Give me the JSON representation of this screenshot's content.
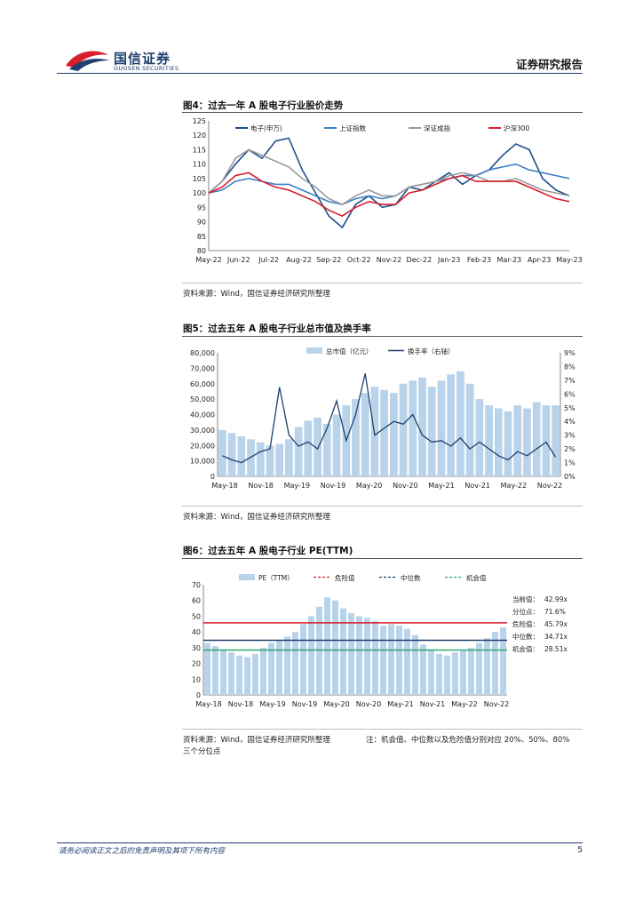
{
  "header": {
    "logo_cn": "国信证券",
    "logo_en": "GUOSEN SECURITIES",
    "report_type": "证券研究报告"
  },
  "figures": [
    {
      "title": "图4：过去一年 A 股电子行业股价走势",
      "source": "资料来源：Wind，国信证券经济研究所整理"
    },
    {
      "title": "图5：过去五年 A 股电子行业总市值及换手率",
      "source": "资料来源：Wind，国信证券经济研究所整理"
    },
    {
      "title": "图6：过去五年 A 股电子行业 PE(TTM)",
      "source": "资料来源：Wind，国信证券经济研究所整理",
      "note": "注：机会值、中位数以及危险值分别对应 20%、50%、80%",
      "note_line2": "三个分位点"
    }
  ],
  "footer": {
    "disclaimer": "请务必阅读正文之后的免责声明及其项下所有内容",
    "page": "5"
  },
  "chart_data": [
    {
      "type": "line",
      "title": "",
      "xlabel": "",
      "ylabel": "",
      "ylim": [
        80,
        125
      ],
      "yticks": [
        "125",
        "120",
        "115",
        "110",
        "105",
        "100",
        "95",
        "90",
        "85",
        "80"
      ],
      "x_ticks": [
        "May-22",
        "Jun-22",
        "Jul-22",
        "Aug-22",
        "Sep-22",
        "Oct-22",
        "Nov-22",
        "Dec-22",
        "Jan-23",
        "Feb-23",
        "Mar-23",
        "Apr-23",
        "May-23"
      ],
      "legend_position": "top",
      "series": [
        {
          "name": "电子(申万)",
          "color": "#1f4e8c",
          "values": [
            100,
            104,
            110,
            115,
            112,
            118,
            119,
            108,
            100,
            92,
            88,
            96,
            99,
            95,
            96,
            102,
            101,
            104,
            107,
            103,
            106,
            108,
            113,
            117,
            115,
            105,
            101,
            99
          ]
        },
        {
          "name": "上证指数",
          "color": "#3c7fc4",
          "values": [
            100,
            101,
            104,
            105,
            104,
            103,
            103,
            101,
            99,
            97,
            96,
            98,
            99,
            98,
            99,
            102,
            103,
            104,
            105,
            106,
            106,
            108,
            109,
            110,
            108,
            107,
            106,
            105
          ]
        },
        {
          "name": "深证成指",
          "color": "#9a9a9a",
          "values": [
            100,
            104,
            112,
            115,
            113,
            111,
            109,
            105,
            102,
            98,
            96,
            99,
            101,
            99,
            99,
            102,
            103,
            104,
            106,
            107,
            106,
            104,
            104,
            105,
            103,
            101,
            100,
            99
          ]
        },
        {
          "name": "沪深300",
          "color": "#d81e2c",
          "values": [
            100,
            102,
            106,
            107,
            104,
            102,
            101,
            99,
            97,
            94,
            92,
            95,
            97,
            96,
            96,
            100,
            101,
            103,
            105,
            106,
            104,
            104,
            104,
            104,
            102,
            100,
            98,
            97
          ]
        }
      ]
    },
    {
      "type": "bar",
      "title": "",
      "xlabel": "",
      "ylabel": "",
      "ylim": [
        0,
        80000
      ],
      "y2lim": [
        0,
        9
      ],
      "yticks_left": [
        "80,000",
        "70,000",
        "60,000",
        "50,000",
        "40,000",
        "30,000",
        "20,000",
        "10,000",
        "0"
      ],
      "yticks_right": [
        "9%",
        "8%",
        "7%",
        "6%",
        "5%",
        "4%",
        "3%",
        "2%",
        "1%",
        "0%"
      ],
      "x_ticks": [
        "May-18",
        "Nov-18",
        "May-19",
        "Nov-19",
        "May-20",
        "Nov-20",
        "May-21",
        "Nov-21",
        "May-22",
        "Nov-22"
      ],
      "legend_position": "top",
      "series": [
        {
          "name": "总市值（亿元）",
          "kind": "bar",
          "color": "#b9d3ea",
          "values": [
            30000,
            28000,
            26000,
            24000,
            22000,
            20000,
            21000,
            24000,
            32000,
            36000,
            38000,
            34000,
            40000,
            46000,
            50000,
            54000,
            58000,
            56000,
            54000,
            60000,
            62000,
            64000,
            58000,
            62000,
            66000,
            68000,
            60000,
            50000,
            46000,
            44000,
            42000,
            46000,
            44000,
            48000,
            46000,
            46000
          ]
        },
        {
          "name": "换手率（右轴）",
          "kind": "line",
          "color": "#1f3f6e",
          "values": [
            1.5,
            1.2,
            1.0,
            1.4,
            1.8,
            2.0,
            6.5,
            3.0,
            2.2,
            2.5,
            2.0,
            3.5,
            5.5,
            2.6,
            4.5,
            7.5,
            3.0,
            3.5,
            4.0,
            3.8,
            4.5,
            3.0,
            2.5,
            2.6,
            2.2,
            2.8,
            2.0,
            2.5,
            2.0,
            1.5,
            1.2,
            1.8,
            1.5,
            2.0,
            2.5,
            1.4
          ]
        }
      ]
    },
    {
      "type": "bar",
      "title": "",
      "xlabel": "",
      "ylabel": "",
      "ylim": [
        0,
        70
      ],
      "yticks": [
        "70",
        "60",
        "50",
        "40",
        "30",
        "20",
        "10",
        "0"
      ],
      "x_ticks": [
        "May-18",
        "Nov-18",
        "May-19",
        "Nov-19",
        "May-20",
        "Nov-20",
        "May-21",
        "Nov-21",
        "May-22",
        "Nov-22"
      ],
      "legend_position": "top",
      "series": [
        {
          "name": "PE（TTM）",
          "kind": "bar",
          "color": "#b9d3ea",
          "values": [
            33,
            31,
            29,
            27,
            25,
            24,
            26,
            30,
            33,
            35,
            37,
            40,
            45,
            50,
            56,
            62,
            60,
            55,
            52,
            50,
            49,
            47,
            44,
            45,
            44,
            42,
            38,
            32,
            29,
            26,
            25,
            27,
            28,
            30,
            33,
            36,
            40,
            43
          ]
        },
        {
          "name": "危险值",
          "kind": "hline",
          "color": "#d81e2c",
          "value": 45.79
        },
        {
          "name": "中位数",
          "kind": "hline",
          "color": "#1f3f6e",
          "value": 34.71
        },
        {
          "name": "机会值",
          "kind": "hline",
          "color": "#2ea86e",
          "value": 28.51
        }
      ],
      "stats": [
        {
          "label": "当前值：",
          "value": "42.99x"
        },
        {
          "label": "分位点：",
          "value": "71.6%"
        },
        {
          "label": "危险值：",
          "value": "45.79x"
        },
        {
          "label": "中位数：",
          "value": "34.71x"
        },
        {
          "label": "机会值：",
          "value": "28.51x"
        }
      ]
    }
  ]
}
